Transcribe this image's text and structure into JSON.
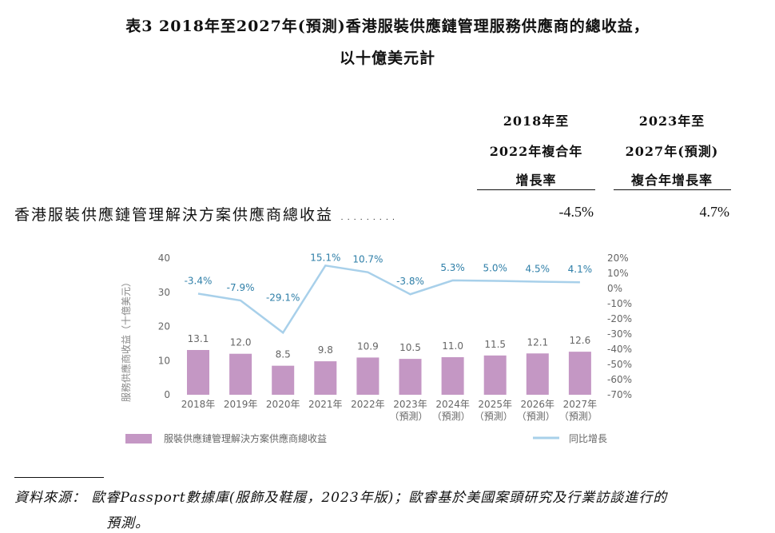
{
  "title": {
    "line1": "表3 2018年至2027年(預測)香港服裝供應鏈管理服務供應商的總收益，",
    "line2": "以十億美元計"
  },
  "table": {
    "col1_header": [
      "2018年至",
      "2022年複合年",
      "增長率"
    ],
    "col2_header": [
      "2023年至",
      "2027年(預測)",
      "複合年增長率"
    ],
    "row_label": "香港服裝供應鏈管理解決方案供應商總收益 .........",
    "col1_value": "-4.5%",
    "col2_value": "4.7%"
  },
  "chart_data": {
    "type": "bar+line",
    "categories": [
      [
        "2018年",
        ""
      ],
      [
        "2019年",
        ""
      ],
      [
        "2020年",
        ""
      ],
      [
        "2021年",
        ""
      ],
      [
        "2022年",
        ""
      ],
      [
        "2023年",
        "（預測）"
      ],
      [
        "2024年",
        "（預測）"
      ],
      [
        "2025年",
        "（預測）"
      ],
      [
        "2026年",
        "（預測）"
      ],
      [
        "2027年",
        "（預測）"
      ]
    ],
    "series": [
      {
        "name": "服裝供應鏈管理解決方案供應商總收益",
        "type": "bar",
        "axis": "left",
        "values": [
          13.1,
          12.0,
          8.5,
          9.8,
          10.9,
          10.5,
          11.0,
          11.5,
          12.1,
          12.6
        ],
        "labels": [
          "13.1",
          "12.0",
          "8.5",
          "9.8",
          "10.9",
          "10.5",
          "11.0",
          "11.5",
          "12.1",
          "12.6"
        ],
        "color": "#c497c4"
      },
      {
        "name": "同比增長",
        "type": "line",
        "axis": "right",
        "values": [
          -3.4,
          -7.9,
          -29.1,
          15.1,
          10.7,
          -3.8,
          5.3,
          5.0,
          4.5,
          4.1
        ],
        "labels": [
          "-3.4%",
          "-7.9%",
          "-29.1%",
          "15.1%",
          "10.7%",
          "-3.8%",
          "5.3%",
          "5.0%",
          "4.5%",
          "4.1%"
        ],
        "color": "#a8d0ea"
      }
    ],
    "ylabel": "服務供應商收益（十億美元）",
    "ylim": [
      0,
      40
    ],
    "yticks": [
      "0",
      "10",
      "20",
      "30",
      "40"
    ],
    "y2lim": [
      -70,
      20
    ],
    "y2ticks": [
      "20%",
      "10%",
      "0%",
      "-10%",
      "-20%",
      "-30%",
      "-40%",
      "-50%",
      "-60%",
      "-70%"
    ],
    "label_color": "#2f7fa8",
    "grid": false,
    "legend": "bottom"
  },
  "source": {
    "line1": "資料來源： 歐睿Passport數據庫(服飾及鞋履，2023年版)；歐睿基於美國案頭研究及行業訪談進行的",
    "line2": "預測。"
  }
}
